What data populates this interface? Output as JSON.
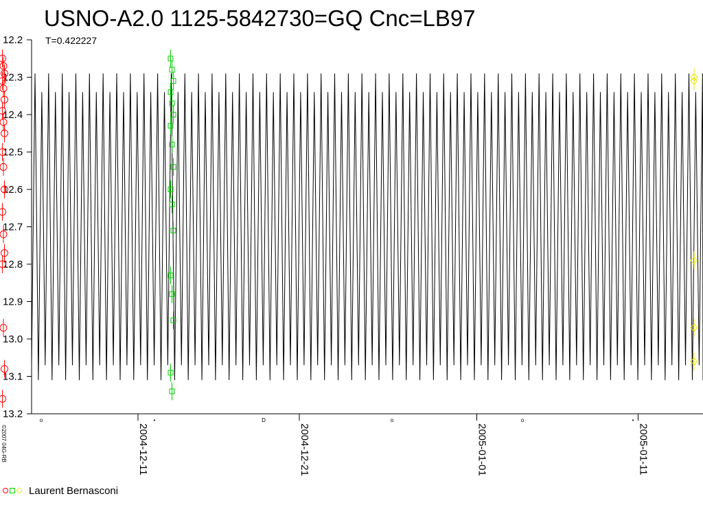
{
  "chart_data": {
    "type": "scatter",
    "title": "USNO-A2.0 1125-5842730=GQ Cnc=LB97",
    "subtitle": "T=0.422227",
    "copyright": "©2007 04G-RB",
    "ylim": [
      12.2,
      13.2
    ],
    "y_inverted": true,
    "y_ticks": [
      "12.2",
      "12.3",
      "12.4",
      "12.5",
      "12.6",
      "12.7",
      "12.8",
      "12.9",
      "13.0",
      "13.1",
      "13.2"
    ],
    "x_tick_labels": [
      "2004-12-11",
      "2004-12-21",
      "2005-01-01",
      "2005-01-11"
    ],
    "model_curve": {
      "period_days": 0.422227,
      "bright_limit": 12.29,
      "faint_limit": 13.11,
      "secondary_bright": 12.34,
      "secondary_faint": 13.07
    },
    "series": [
      {
        "name": "Laurent Bernasconi",
        "marker": "circle",
        "color": "#ff0000",
        "points": [
          {
            "date": "2004-12-02",
            "mag": 12.25
          },
          {
            "date": "2004-12-02",
            "mag": 12.27
          },
          {
            "date": "2004-12-02",
            "mag": 12.29
          },
          {
            "date": "2004-12-02",
            "mag": 12.31
          },
          {
            "date": "2004-12-02",
            "mag": 12.33
          },
          {
            "date": "2004-12-02",
            "mag": 12.36
          },
          {
            "date": "2004-12-02",
            "mag": 12.39
          },
          {
            "date": "2004-12-02",
            "mag": 12.42
          },
          {
            "date": "2004-12-02",
            "mag": 12.45
          },
          {
            "date": "2004-12-02",
            "mag": 12.5
          },
          {
            "date": "2004-12-02",
            "mag": 12.54
          },
          {
            "date": "2004-12-02",
            "mag": 12.6
          },
          {
            "date": "2004-12-02",
            "mag": 12.66
          },
          {
            "date": "2004-12-02",
            "mag": 12.72
          },
          {
            "date": "2004-12-02",
            "mag": 12.77
          },
          {
            "date": "2004-12-02",
            "mag": 12.8
          },
          {
            "date": "2004-12-02",
            "mag": 12.97
          },
          {
            "date": "2004-12-02",
            "mag": 13.08
          },
          {
            "date": "2004-12-02",
            "mag": 13.16
          }
        ]
      },
      {
        "name": "Laurent Bernasconi",
        "marker": "square",
        "color": "#00cc00",
        "points": [
          {
            "date": "2004-12-12",
            "mag": 12.25
          },
          {
            "date": "2004-12-12",
            "mag": 12.28
          },
          {
            "date": "2004-12-12",
            "mag": 12.31
          },
          {
            "date": "2004-12-12",
            "mag": 12.34
          },
          {
            "date": "2004-12-12",
            "mag": 12.37
          },
          {
            "date": "2004-12-12",
            "mag": 12.4
          },
          {
            "date": "2004-12-12",
            "mag": 12.43
          },
          {
            "date": "2004-12-12",
            "mag": 12.48
          },
          {
            "date": "2004-12-12",
            "mag": 12.54
          },
          {
            "date": "2004-12-12",
            "mag": 12.6
          },
          {
            "date": "2004-12-12",
            "mag": 12.64
          },
          {
            "date": "2004-12-12",
            "mag": 12.71
          },
          {
            "date": "2004-12-12",
            "mag": 12.83
          },
          {
            "date": "2004-12-12",
            "mag": 12.88
          },
          {
            "date": "2004-12-12",
            "mag": 12.95
          },
          {
            "date": "2004-12-12",
            "mag": 13.09
          },
          {
            "date": "2004-12-12",
            "mag": 13.14
          }
        ]
      },
      {
        "name": "Laurent Bernasconi",
        "marker": "diamond",
        "color": "#e8e800",
        "points": [
          {
            "date": "2005-01-14",
            "mag": 12.3
          },
          {
            "date": "2005-01-14",
            "mag": 12.31
          },
          {
            "date": "2005-01-14",
            "mag": 12.79
          },
          {
            "date": "2005-01-14",
            "mag": 12.97
          },
          {
            "date": "2005-01-14",
            "mag": 13.06
          }
        ]
      }
    ],
    "legend_label": "Laurent Bernasconi",
    "legend_placement": "bottom-left"
  }
}
